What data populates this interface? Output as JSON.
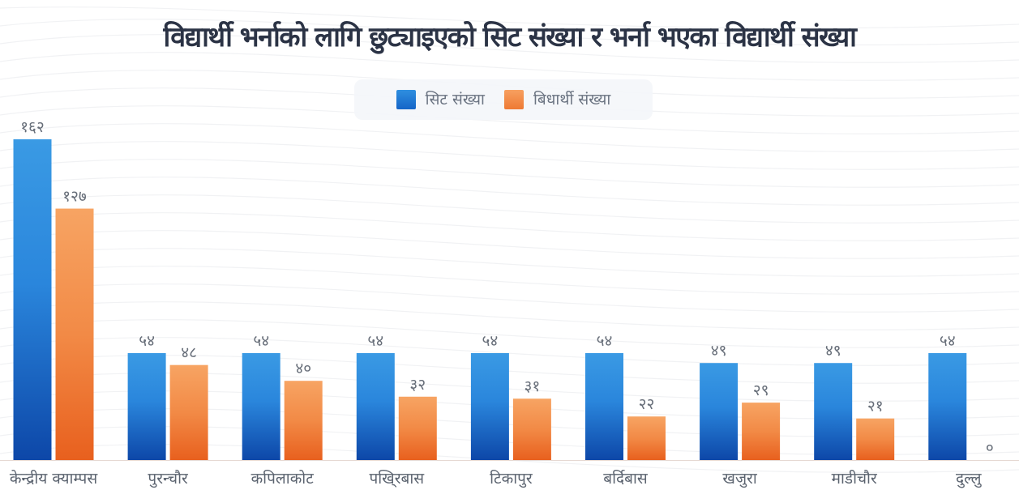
{
  "chart_data": {
    "type": "bar",
    "title": "विद्यार्थी भर्नाको लागि छुट्याइएको सिट संख्या र भर्ना भएका विद्यार्थी संख्या",
    "xlabel": "",
    "ylabel": "",
    "ylim": [
      0,
      162
    ],
    "grid": false,
    "legend_position": "top-center",
    "categories": [
      "केन्द्रीय क्याम्पस",
      "पुरन्चौर",
      "कपिलाकोट",
      "पखि्रबास",
      "टिकापुर",
      "बर्दिबास",
      "खजुरा",
      "माडीचौर",
      "दुल्लु"
    ],
    "series": [
      {
        "name": "सिट संख्या",
        "color": "#1f74d6",
        "values": [
          162,
          54,
          54,
          54,
          54,
          54,
          49,
          49,
          54
        ],
        "labels": [
          "१६२",
          "५४",
          "५४",
          "५४",
          "५४",
          "५४",
          "४९",
          "४९",
          "५४"
        ]
      },
      {
        "name": "बिधार्थी संख्या",
        "color": "#f08a45",
        "values": [
          127,
          48,
          40,
          32,
          31,
          22,
          29,
          21,
          0
        ],
        "labels": [
          "१२७",
          "४८",
          "४०",
          "३२",
          "३१",
          "२२",
          "२९",
          "२१",
          "०"
        ]
      }
    ]
  },
  "legend": {
    "items": [
      {
        "label": "सिट संख्या",
        "color": "#1f74d6"
      },
      {
        "label": "बिधार्थी संख्या",
        "color": "#f08a45"
      }
    ]
  }
}
